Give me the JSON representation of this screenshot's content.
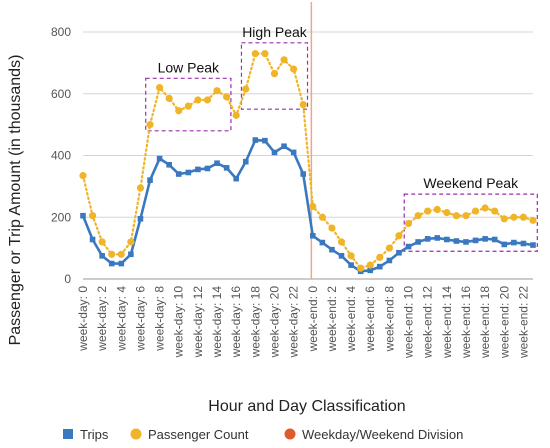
{
  "chart_data": {
    "type": "line",
    "ylabel": "Passenger or Trip Amount (in thousands)",
    "xlabel": "Hour and Day Classification",
    "ylim": [
      0,
      800
    ],
    "yticks": [
      0,
      200,
      400,
      600,
      800
    ],
    "grid": true,
    "legend_position": "bottom",
    "categories": [
      "week-day: 0",
      "week-day: 1",
      "week-day: 2",
      "week-day: 3",
      "week-day: 4",
      "week-day: 5",
      "week-day: 6",
      "week-day: 7",
      "week-day: 8",
      "week-day: 9",
      "week-day: 10",
      "week-day: 11",
      "week-day: 12",
      "week-day: 13",
      "week-day: 14",
      "week-day: 15",
      "week-day: 16",
      "week-day: 17",
      "week-day: 18",
      "week-day: 19",
      "week-day: 20",
      "week-day: 21",
      "week-day: 22",
      "week-day: 23",
      "week-end: 0",
      "week-end: 1",
      "week-end: 2",
      "week-end: 3",
      "week-end: 4",
      "week-end: 5",
      "week-end: 6",
      "week-end: 7",
      "week-end: 8",
      "week-end: 9",
      "week-end: 10",
      "week-end: 11",
      "week-end: 12",
      "week-end: 13",
      "week-end: 14",
      "week-end: 15",
      "week-end: 16",
      "week-end: 17",
      "week-end: 18",
      "week-end: 19",
      "week-end: 20",
      "week-end: 21",
      "week-end: 22",
      "week-end: 23"
    ],
    "tick_labels": [
      "week-day: 0",
      "week-day: 2",
      "week-day: 4",
      "week-day: 6",
      "week-day: 8",
      "week-day: 10",
      "week-day: 12",
      "week-day: 14",
      "week-day: 16",
      "week-day: 18",
      "week-day: 20",
      "week-day: 22",
      "week-end: 0",
      "week-end: 2",
      "week-end: 4",
      "week-end: 6",
      "week-end: 8",
      "week-end: 10",
      "week-end: 12",
      "week-end: 14",
      "week-end: 16",
      "week-end: 18",
      "week-end: 20",
      "week-end: 22"
    ],
    "series": [
      {
        "name": "Trips",
        "color": "#3a78bf",
        "marker": "square",
        "line": "solid",
        "values": [
          205,
          128,
          75,
          50,
          50,
          80,
          195,
          320,
          390,
          370,
          340,
          345,
          355,
          358,
          375,
          360,
          325,
          380,
          450,
          448,
          410,
          430,
          410,
          340,
          140,
          118,
          95,
          75,
          45,
          25,
          28,
          40,
          60,
          85,
          105,
          120,
          130,
          133,
          128,
          123,
          120,
          125,
          130,
          128,
          112,
          118,
          115,
          110
        ]
      },
      {
        "name": "Passenger Count",
        "color": "#f0b429",
        "marker": "circle",
        "line": "dotted",
        "values": [
          335,
          205,
          120,
          80,
          80,
          120,
          295,
          500,
          620,
          585,
          545,
          560,
          580,
          580,
          610,
          590,
          530,
          615,
          730,
          730,
          665,
          710,
          680,
          565,
          235,
          200,
          165,
          120,
          75,
          35,
          45,
          70,
          100,
          140,
          180,
          205,
          220,
          225,
          215,
          205,
          205,
          220,
          230,
          220,
          195,
          200,
          200,
          190
        ]
      },
      {
        "name": "Weekday/Weekend Division",
        "color": "#e05a2b",
        "marker": "circle",
        "at_category": "week-end: 0"
      }
    ],
    "annotations": [
      {
        "label": "Low Peak",
        "from": "week-day: 7",
        "to": "week-day: 15",
        "y_range": [
          480,
          650
        ]
      },
      {
        "label": "High Peak",
        "from": "week-day: 17",
        "to": "week-day: 23",
        "y_range": [
          550,
          765
        ]
      },
      {
        "label": "Weekend Peak",
        "from": "week-end: 10",
        "to": "week-end: 23",
        "y_range": [
          90,
          275
        ]
      }
    ]
  }
}
